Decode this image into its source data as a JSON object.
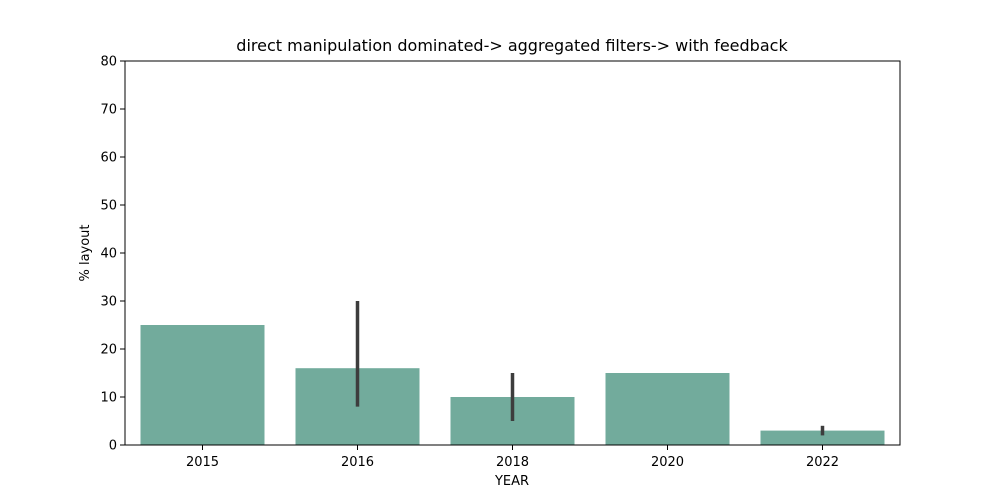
{
  "chart_data": {
    "type": "bar",
    "title": "direct manipulation dominated-> aggregated filters-> with feedback",
    "xlabel": "YEAR",
    "ylabel": "% layout",
    "categories": [
      "2015",
      "2016",
      "2018",
      "2020",
      "2022"
    ],
    "values": [
      25,
      16,
      10,
      15,
      3
    ],
    "error_bars": [
      null,
      [
        8,
        30
      ],
      [
        5,
        15
      ],
      null,
      [
        2,
        4
      ]
    ],
    "ylim": [
      0,
      80
    ],
    "yticks": [
      0,
      10,
      20,
      30,
      40,
      50,
      60,
      70,
      80
    ],
    "grid": false,
    "legend": null,
    "bar_color": "#72ab9c",
    "error_color": "#3d3d3d"
  }
}
